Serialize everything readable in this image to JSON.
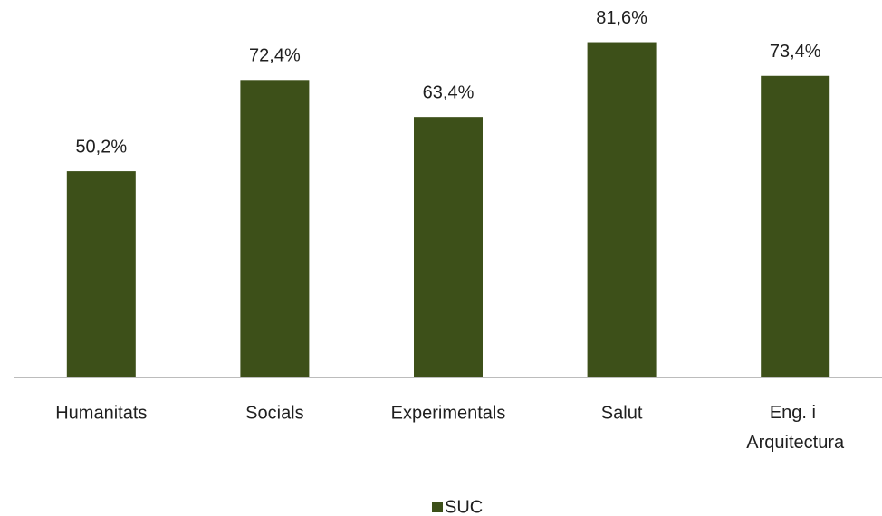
{
  "chart_data": {
    "type": "bar",
    "categories": [
      "Humanitats",
      "Socials",
      "Experimentals",
      "Salut",
      "Eng. i Arquitectura"
    ],
    "series": [
      {
        "name": "SUC",
        "color": "#3d5019",
        "values": [
          50.2,
          72.4,
          63.4,
          81.6,
          73.4
        ],
        "value_labels": [
          "50,2%",
          "72,4%",
          "63,4%",
          "81,6%",
          "73,4%"
        ]
      }
    ],
    "legend": "bottom"
  }
}
